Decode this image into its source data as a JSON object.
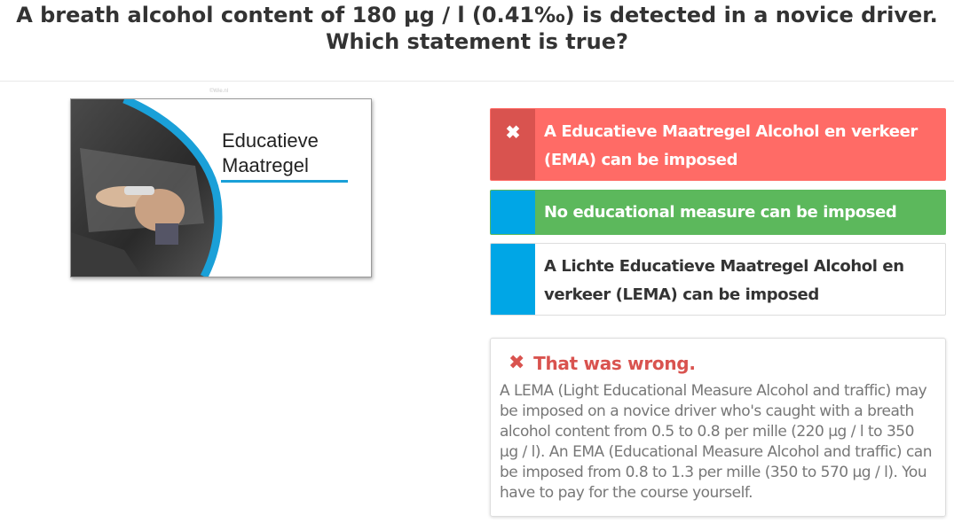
{
  "question": {
    "line1": "A breath alcohol content of 180 µg / l (0.41‰) is detected in a novice driver.",
    "line2": "Which statement is true?"
  },
  "image": {
    "credit": "©Wie.nl",
    "title": "Educatieve\nMaatregel",
    "accent_color": "#1aa0d8"
  },
  "answers": [
    {
      "label": "A Educatieve Maatregel Alcohol en verkeer (EMA) can be imposed",
      "marker": "✖",
      "state": "selected-wrong"
    },
    {
      "label": "No educational measure can be imposed",
      "marker": "",
      "state": "correct"
    },
    {
      "label": "A Lichte Educatieve Maatregel Alcohol en verkeer (LEMA) can be imposed",
      "marker": "",
      "state": "neutral"
    }
  ],
  "feedback": {
    "icon": "✖",
    "title": "That was wrong.",
    "text": "A LEMA (Light Educational Measure Alcohol and traffic) may be imposed on a novice driver who's caught with a breath alcohol content from 0.5 to 0.8 per mille (220 µg / l to 350 µg / l). An EMA (Educational Measure Alcohol and traffic) can be imposed from 0.8 to 1.3 per mille (350 to 570 µg / l). You have to pay for the course yourself."
  },
  "colors": {
    "wrong": "#ff6b66",
    "wrong_marker": "#d9534f",
    "correct": "#5cb85c",
    "marker_blue": "#00a6e6"
  }
}
